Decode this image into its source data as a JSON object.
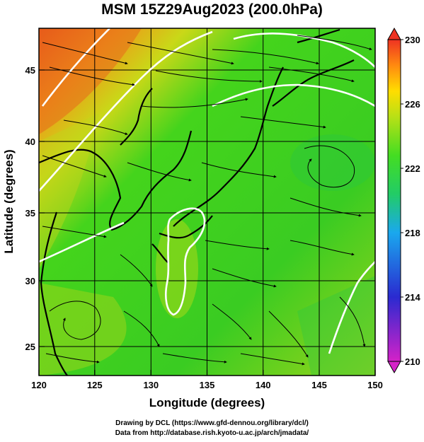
{
  "title": "MSM 15Z29Aug2023 (200.0hPa)",
  "axes": {
    "xlabel": "Longitude (degrees)",
    "ylabel": "Latitude  (degrees)",
    "xticks": [
      "120",
      "125",
      "130",
      "135",
      "140",
      "145",
      "150"
    ],
    "yticks": [
      "45",
      "40",
      "35",
      "30",
      "25"
    ]
  },
  "colorbar": {
    "ticks": [
      "230",
      "226",
      "222",
      "218",
      "214",
      "210"
    ],
    "colors": [
      "#cc22cc",
      "#2222cc",
      "#22aaee",
      "#22cc66",
      "#44dd22",
      "#99dd11",
      "#ffdd00",
      "#ff8800",
      "#ee3322"
    ]
  },
  "credits": {
    "line1": "Drawing by DCL (https://www.gfd-dennou.org/library/dcl/)",
    "line2": "Data from http://database.rish.kyoto-u.ac.jp/arch/jmadata/"
  },
  "chart_data": {
    "type": "heatmap",
    "title": "MSM 15Z29Aug2023 (200.0hPa)",
    "xlabel": "Longitude (degrees)",
    "ylabel": "Latitude  (degrees)",
    "xlim": [
      120,
      150
    ],
    "ylim": [
      22.4,
      47.6
    ],
    "colorbar_range": [
      210,
      230
    ],
    "colorbar_ticks": [
      230,
      226,
      222,
      218,
      214,
      210
    ],
    "grid": true,
    "overlays": [
      "streamlines",
      "white contours",
      "coastlines"
    ]
  }
}
